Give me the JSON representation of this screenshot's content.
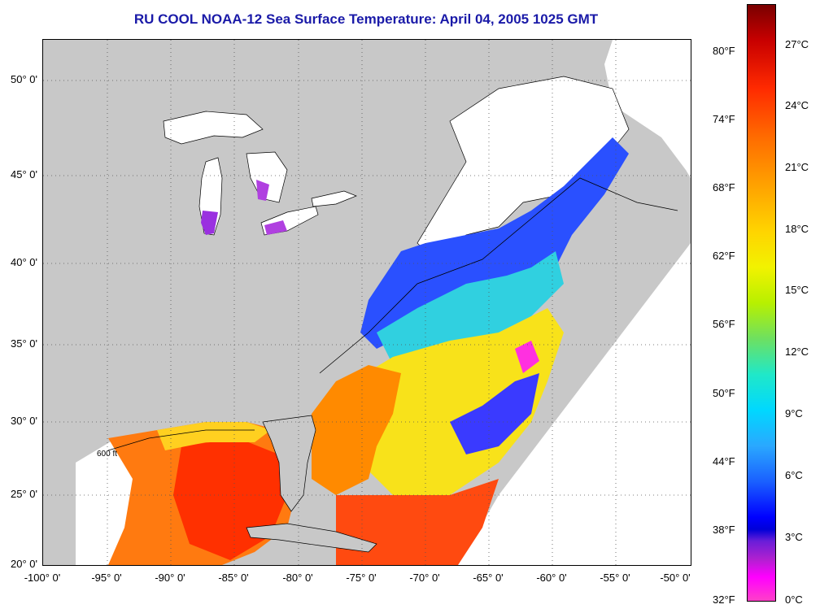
{
  "title": "RU COOL  NOAA-12  Sea Surface Temperature:  April 04, 2005 1025 GMT",
  "map": {
    "lat_labels": [
      "50° 0'",
      "45° 0'",
      "40° 0'",
      "35° 0'",
      "30° 0'",
      "25° 0'",
      "20° 0'"
    ],
    "lon_labels": [
      "-100° 0'",
      "-95° 0'",
      "-90° 0'",
      "-85° 0'",
      "-80° 0'",
      "-75° 0'",
      "-70° 0'",
      "-65° 0'",
      "-60° 0'",
      "-55° 0'",
      "-50° 0'"
    ],
    "isobath_label": "600 ft",
    "colors": {
      "land": "#c8c8c8",
      "nodata": "#ffffff",
      "grid": "#555555"
    }
  },
  "colorbar": {
    "fahrenheit_labels": [
      "80°F",
      "74°F",
      "68°F",
      "62°F",
      "56°F",
      "50°F",
      "44°F",
      "38°F",
      "32°F"
    ],
    "celsius_labels": [
      "27°C",
      "24°C",
      "21°C",
      "18°C",
      "15°C",
      "12°C",
      "9°C",
      "6°C",
      "3°C",
      "0°C"
    ]
  }
}
